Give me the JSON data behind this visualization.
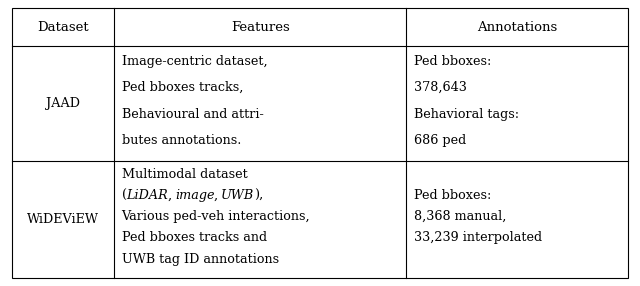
{
  "figsize": [
    6.4,
    2.86
  ],
  "dpi": 100,
  "bg_color": "#ffffff",
  "line_color": "#000000",
  "text_color": "#000000",
  "font_size": 9.2,
  "header_font_size": 9.5,
  "c0": 0.018,
  "c1": 0.178,
  "c2": 0.635,
  "c3": 0.982,
  "r0": 0.972,
  "r1": 0.838,
  "r2": 0.438,
  "r3": 0.028,
  "header": [
    "Dataset",
    "Features",
    "Annotations"
  ],
  "jaad_feat": [
    "Image-centric dataset,",
    "Ped bboxes tracks,",
    "Behavioural and attri-",
    "butes annotations."
  ],
  "jaad_ann": [
    "Ped bboxes:",
    "378,643",
    "Behavioral tags:",
    "686 ped"
  ],
  "wid_ann": [
    "Ped bboxes:",
    "8,368 manual,",
    "33,239 interpolated"
  ]
}
